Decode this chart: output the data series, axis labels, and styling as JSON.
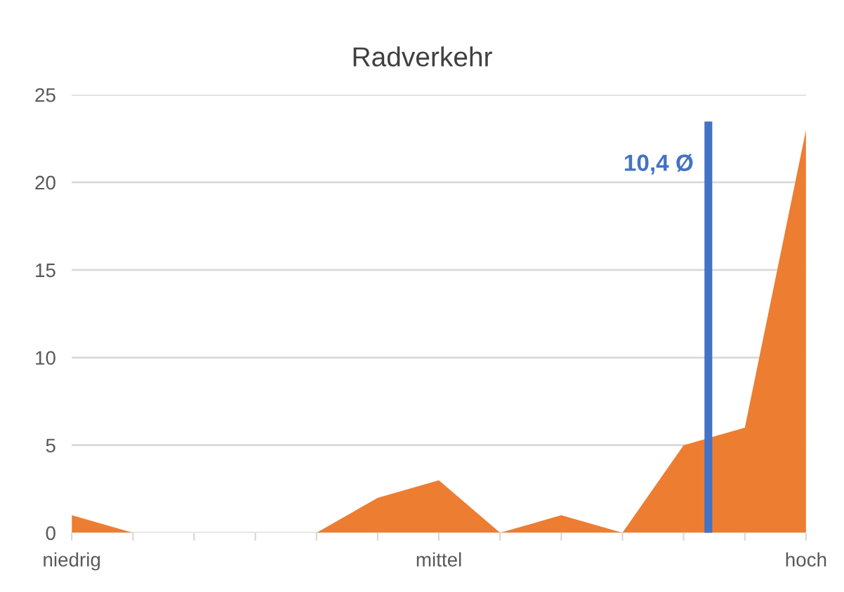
{
  "chart_data": {
    "type": "area",
    "title": "Radverkehr",
    "categories": [
      "niedrig",
      null,
      null,
      null,
      null,
      null,
      "mittel",
      null,
      null,
      null,
      null,
      null,
      "hoch"
    ],
    "series": [
      {
        "color": "#ed7d31",
        "values": [
          1,
          0,
          0,
          0,
          0,
          2,
          3,
          0,
          1,
          0,
          5,
          6,
          23
        ]
      }
    ],
    "ylim": [
      0,
      25
    ],
    "yticks": [
      0,
      5,
      10,
      15,
      20,
      25
    ],
    "grid": "y",
    "legend": false,
    "annotations": [
      "10,4 Ø"
    ]
  }
}
